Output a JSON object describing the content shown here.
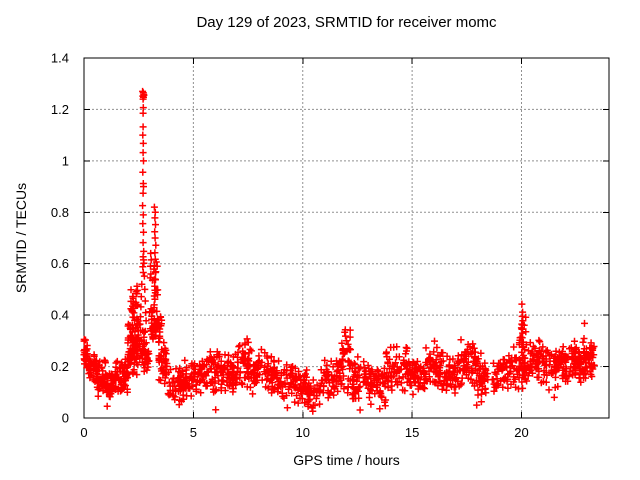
{
  "chart_data": {
    "type": "scatter",
    "title": "Day 129 of 2023, SRMTID for receiver momc",
    "xlabel": "GPS time / hours",
    "ylabel": "SRMTID / TECUs",
    "xlim": [
      0,
      24
    ],
    "ylim": [
      0,
      1.4
    ],
    "xticks": [
      0,
      5,
      10,
      15,
      20
    ],
    "xtick_labels": [
      "0",
      "5",
      "10",
      "15",
      "20"
    ],
    "yticks": [
      0,
      0.2,
      0.4,
      0.6,
      0.8,
      1.0,
      1.2,
      1.4
    ],
    "ytick_labels": [
      "0",
      "0.2",
      "0.4",
      "0.6",
      "0.8",
      "1",
      "1.2",
      "1.4"
    ],
    "grid": true,
    "grid_color": "#909090",
    "border_color": "#000000",
    "marker": {
      "shape": "plus",
      "color": "#ff0000",
      "size": 7
    },
    "seed": 1290523,
    "points": [
      [
        2.68,
        1.27
      ],
      [
        2.71,
        1.265
      ],
      [
        2.73,
        1.258
      ],
      [
        2.69,
        1.252
      ],
      [
        2.72,
        1.247
      ],
      [
        2.74,
        1.255
      ],
      [
        2.7,
        1.24
      ],
      [
        2.71,
        1.207
      ],
      [
        2.7,
        1.185
      ],
      [
        2.7,
        1.132
      ],
      [
        2.69,
        1.1
      ],
      [
        2.71,
        1.068
      ],
      [
        2.7,
        1.032
      ],
      [
        2.72,
        1.0
      ],
      [
        2.69,
        0.956
      ],
      [
        2.71,
        0.912
      ],
      [
        2.72,
        0.9
      ],
      [
        2.7,
        0.874
      ],
      [
        2.68,
        0.826
      ],
      [
        2.71,
        0.79
      ],
      [
        2.69,
        0.756
      ],
      [
        2.72,
        0.722
      ],
      [
        2.7,
        0.682
      ],
      [
        2.73,
        0.648
      ],
      [
        2.7,
        0.627
      ],
      [
        2.72,
        0.615
      ],
      [
        2.74,
        0.602
      ],
      [
        2.69,
        0.588
      ],
      [
        2.71,
        0.566
      ],
      [
        2.76,
        0.552
      ],
      [
        2.64,
        0.52
      ],
      [
        2.78,
        0.5
      ],
      [
        2.62,
        0.472
      ],
      [
        2.8,
        0.455
      ],
      [
        2.6,
        0.432
      ],
      [
        2.82,
        0.41
      ],
      [
        2.58,
        0.394
      ],
      [
        2.84,
        0.378
      ],
      [
        2.56,
        0.365
      ],
      [
        3.05,
        0.64
      ],
      [
        3.07,
        0.615
      ],
      [
        3.04,
        0.59
      ],
      [
        3.06,
        0.56
      ],
      [
        3.03,
        0.545
      ],
      [
        3.22,
        0.82
      ],
      [
        3.26,
        0.8
      ],
      [
        3.24,
        0.778
      ],
      [
        3.27,
        0.752
      ],
      [
        3.23,
        0.724
      ],
      [
        3.25,
        0.7
      ],
      [
        3.28,
        0.672
      ],
      [
        3.24,
        0.643
      ],
      [
        3.26,
        0.617
      ],
      [
        3.22,
        0.592
      ],
      [
        3.27,
        0.566
      ],
      [
        3.25,
        0.54
      ],
      [
        3.23,
        0.512
      ],
      [
        3.26,
        0.487
      ],
      [
        3.24,
        0.462
      ],
      [
        3.21,
        0.44
      ],
      [
        20.02,
        0.443
      ],
      [
        20.05,
        0.412
      ],
      [
        20.03,
        0.395
      ],
      [
        20.06,
        0.378
      ],
      [
        20.04,
        0.362
      ],
      [
        20.02,
        0.345
      ],
      [
        20.05,
        0.33
      ],
      [
        20.03,
        0.312
      ],
      [
        20.06,
        0.295
      ],
      [
        20.04,
        0.275
      ],
      [
        20.02,
        0.255
      ],
      [
        20.05,
        0.235
      ],
      [
        20.03,
        0.215
      ],
      [
        20.06,
        0.19
      ],
      [
        20.04,
        0.165
      ],
      [
        20.02,
        0.14
      ],
      [
        20.05,
        0.115
      ],
      [
        1.06,
        0.046
      ],
      [
        4.35,
        0.052
      ],
      [
        6.02,
        0.032
      ],
      [
        9.3,
        0.04
      ],
      [
        10.46,
        0.026
      ],
      [
        12.62,
        0.031
      ],
      [
        13.52,
        0.036
      ],
      [
        17.95,
        0.05
      ],
      [
        21.5,
        0.08
      ],
      [
        22.88,
        0.368
      ]
    ],
    "noise_bands": [
      [
        0.0,
        0.15,
        0.18,
        0.32,
        22
      ],
      [
        0.1,
        0.6,
        0.12,
        0.28,
        45
      ],
      [
        0.6,
        1.0,
        0.08,
        0.24,
        40
      ],
      [
        1.0,
        1.45,
        0.05,
        0.2,
        45
      ],
      [
        1.45,
        2.0,
        0.08,
        0.25,
        55
      ],
      [
        2.0,
        2.45,
        0.15,
        0.4,
        60
      ],
      [
        2.1,
        2.5,
        0.3,
        0.52,
        40
      ],
      [
        2.45,
        2.7,
        0.18,
        0.38,
        25
      ],
      [
        2.7,
        3.0,
        0.15,
        0.36,
        28
      ],
      [
        3.0,
        3.55,
        0.28,
        0.45,
        50
      ],
      [
        3.1,
        3.4,
        0.44,
        0.62,
        12
      ],
      [
        3.4,
        3.8,
        0.12,
        0.32,
        38
      ],
      [
        3.8,
        4.6,
        0.06,
        0.2,
        52
      ],
      [
        4.6,
        5.4,
        0.08,
        0.23,
        55
      ],
      [
        5.4,
        6.2,
        0.09,
        0.27,
        58
      ],
      [
        6.2,
        7.0,
        0.08,
        0.26,
        58
      ],
      [
        7.0,
        7.6,
        0.11,
        0.32,
        48
      ],
      [
        7.6,
        8.6,
        0.09,
        0.28,
        62
      ],
      [
        8.6,
        9.6,
        0.06,
        0.24,
        62
      ],
      [
        9.6,
        10.2,
        0.05,
        0.2,
        42
      ],
      [
        10.2,
        10.8,
        0.02,
        0.16,
        40
      ],
      [
        10.8,
        11.6,
        0.06,
        0.24,
        52
      ],
      [
        11.6,
        12.2,
        0.09,
        0.35,
        48
      ],
      [
        12.2,
        13.0,
        0.06,
        0.24,
        52
      ],
      [
        13.0,
        13.8,
        0.04,
        0.22,
        52
      ],
      [
        13.8,
        14.8,
        0.09,
        0.3,
        62
      ],
      [
        14.8,
        15.6,
        0.08,
        0.26,
        55
      ],
      [
        15.6,
        16.4,
        0.1,
        0.3,
        58
      ],
      [
        16.4,
        17.2,
        0.08,
        0.26,
        55
      ],
      [
        17.2,
        18.0,
        0.1,
        0.32,
        58
      ],
      [
        18.0,
        19.0,
        0.06,
        0.26,
        60
      ],
      [
        19.0,
        19.9,
        0.08,
        0.28,
        55
      ],
      [
        19.9,
        20.2,
        0.12,
        0.42,
        25
      ],
      [
        20.1,
        21.0,
        0.1,
        0.33,
        62
      ],
      [
        21.0,
        22.0,
        0.1,
        0.3,
        68
      ],
      [
        22.0,
        22.8,
        0.12,
        0.3,
        66
      ],
      [
        22.8,
        23.35,
        0.14,
        0.32,
        55
      ]
    ]
  }
}
